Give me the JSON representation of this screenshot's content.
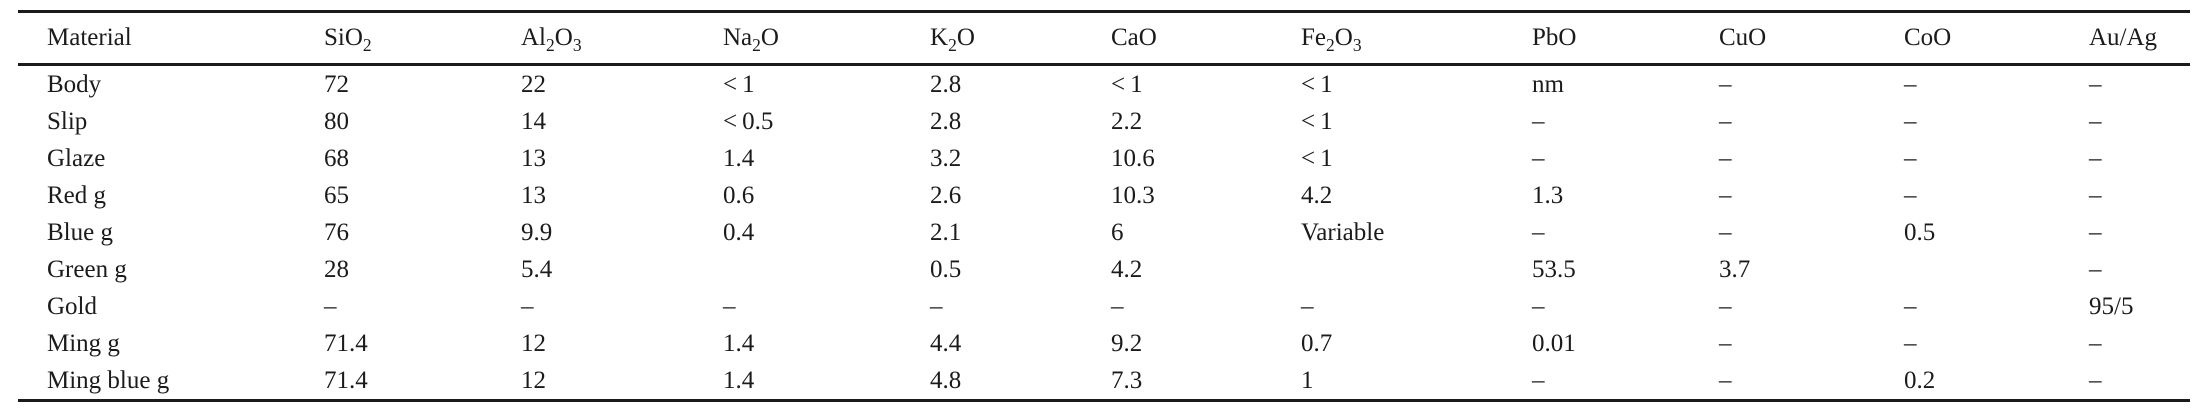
{
  "page": {
    "background_color": "#ffffff",
    "text_color": "#1b1b1b",
    "rule_color": "#1b1b1b"
  },
  "table": {
    "columns": [
      "Material",
      "SiO2",
      "Al2O3",
      "Na2O",
      "K2O",
      "CaO",
      "Fe2O3",
      "PbO",
      "CuO",
      "CoO",
      "Au/Ag"
    ],
    "rows": [
      [
        "Body",
        "72",
        "22",
        "< 1",
        "2.8",
        "< 1",
        "< 1",
        "nm",
        "–",
        "–",
        "–"
      ],
      [
        "Slip",
        "80",
        "14",
        "< 0.5",
        "2.8",
        "2.2",
        "< 1",
        "–",
        "–",
        "–",
        "–"
      ],
      [
        "Glaze",
        "68",
        "13",
        "1.4",
        "3.2",
        "10.6",
        "< 1",
        "–",
        "–",
        "–",
        "–"
      ],
      [
        "Red g",
        "65",
        "13",
        "0.6",
        "2.6",
        "10.3",
        "4.2",
        "1.3",
        "–",
        "–",
        "–"
      ],
      [
        "Blue g",
        "76",
        "9.9",
        "0.4",
        "2.1",
        "6",
        "Variable",
        "–",
        "–",
        "0.5",
        "–"
      ],
      [
        "Green g",
        "28",
        "5.4",
        "",
        "0.5",
        "4.2",
        "",
        "53.5",
        "3.7",
        "",
        "–"
      ],
      [
        "Gold",
        "–",
        "–",
        "–",
        "–",
        "–",
        "–",
        "–",
        "–",
        "–",
        "95/5"
      ],
      [
        "Ming g",
        "71.4",
        "12",
        "1.4",
        "4.4",
        "9.2",
        "0.7",
        "0.01",
        "–",
        "–",
        "–"
      ],
      [
        "Ming blue g",
        "71.4",
        "12",
        "1.4",
        "4.8",
        "7.3",
        "1",
        "–",
        "–",
        "0.2",
        "–"
      ]
    ]
  }
}
